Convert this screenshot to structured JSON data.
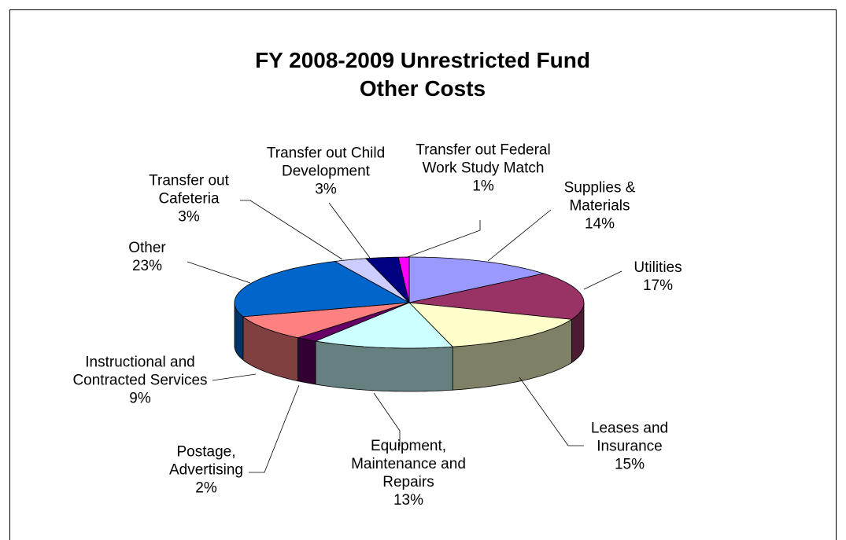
{
  "chart_data": {
    "type": "pie",
    "title": "FY 2008-2009 Unrestricted Fund Other Costs",
    "categories": [
      "Supplies & Materials",
      "Utilities",
      "Leases and Insurance",
      "Equipment, Maintenance and Repairs",
      "Postage, Advertising",
      "Instructional and Contracted Services",
      "Other",
      "Transfer out Cafeteria",
      "Transfer out Child Development",
      "Transfer out Federal Work Study Match"
    ],
    "values": [
      14,
      17,
      15,
      13,
      2,
      9,
      23,
      3,
      3,
      1
    ],
    "value_labels": [
      "14%",
      "17%",
      "15%",
      "13%",
      "2%",
      "9%",
      "23%",
      "3%",
      "3%",
      "1%"
    ],
    "colors": [
      "#9999ff",
      "#993366",
      "#ffffcc",
      "#ccffff",
      "#660066",
      "#ff8080",
      "#0066cc",
      "#ccccff",
      "#000080",
      "#ff00ff"
    ]
  }
}
